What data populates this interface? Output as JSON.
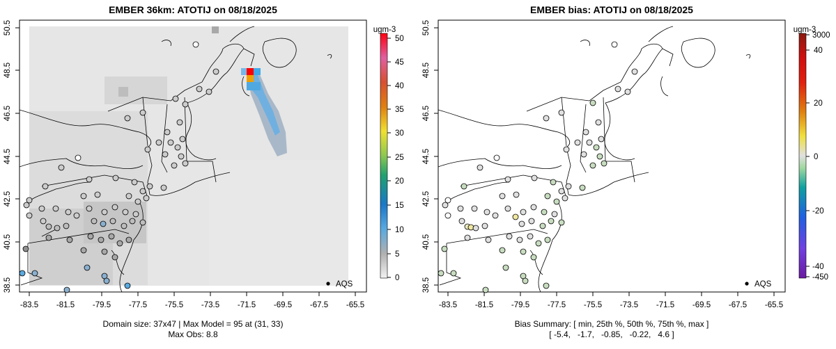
{
  "left_panel": {
    "title": "EMBER 36km: ATOTIJ on 08/18/2025",
    "x_ticks": [
      "-83.5",
      "-81.5",
      "-79.5",
      "-77.5",
      "-75.5",
      "-73.5",
      "-71.5",
      "-69.5",
      "-67.5",
      "-65.5"
    ],
    "y_ticks": [
      "38.5",
      "40.5",
      "42.5",
      "44.5",
      "46.5",
      "48.5",
      "50.5"
    ],
    "legend_label": "AQS",
    "colorbar_unit": "ugm-3",
    "colorbar_ticks": [
      "50",
      "45",
      "40",
      "35",
      "30",
      "25",
      "20",
      "15",
      "10",
      "5",
      "0"
    ],
    "caption_line1": "Domain size: 37x47 | Max Model = 95 at (31, 33)",
    "caption_line2": "Max Obs: 8.8"
  },
  "right_panel": {
    "title": "EMBER bias: ATOTIJ on 08/18/2025",
    "x_ticks": [
      "-83.5",
      "-81.5",
      "-79.5",
      "-77.5",
      "-75.5",
      "-73.5",
      "-71.5",
      "-69.5",
      "-67.5",
      "-65.5"
    ],
    "y_ticks": [
      "38.5",
      "40.5",
      "42.5",
      "44.5",
      "46.5",
      "48.5",
      "50.5"
    ],
    "legend_label": "AQS",
    "colorbar_unit": "ugm-3",
    "colorbar_ticks": [
      "3000",
      "40",
      "20",
      "0",
      "-20",
      "-40",
      "-450"
    ],
    "caption_line1": "Bias Summary: [ min, 25th %, 50th %, 75th %, max ]",
    "caption_line2": "[ -5.4,   -1.7,   -0.85,   -0.22,   4.6 ]"
  },
  "colors": {
    "land_grey": "#e6e6e6",
    "plume_blue": "#5aaae0",
    "hot_red": "#ff0000",
    "hot_orange": "#f0a000",
    "bias_green": "#c8ddc0"
  }
}
